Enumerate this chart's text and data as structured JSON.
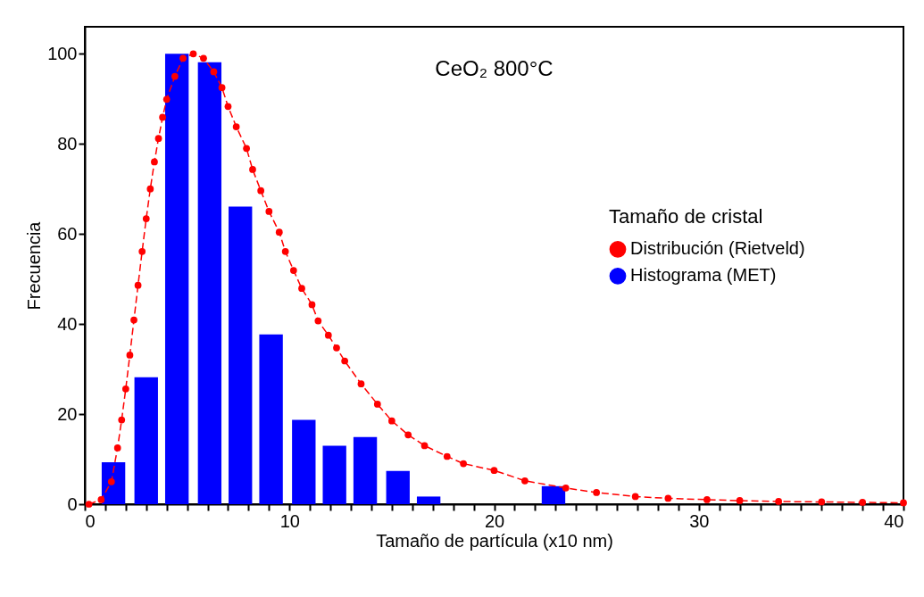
{
  "chart_data": {
    "type": "bar",
    "title": "CeO₂ 800°C",
    "xlabel": "Tamaño de partícula (x10 nm)",
    "ylabel": "Frecuencia",
    "legend_title": "Tamaño de cristal",
    "legend": "right",
    "grid": false,
    "xlim": [
      0,
      40
    ],
    "ylim": [
      0,
      106
    ],
    "xticks": [
      0,
      {
        "value": 1,
        "label": null
      },
      {
        "value": 2,
        "label": null
      },
      {
        "value": 3,
        "label": null
      },
      {
        "value": 4,
        "label": null
      },
      {
        "value": 5,
        "label": null
      },
      {
        "value": 6,
        "label": null
      },
      {
        "value": 7,
        "label": null
      },
      {
        "value": 8,
        "label": null
      },
      {
        "value": 9,
        "label": null
      },
      10,
      {
        "value": 11,
        "label": null
      },
      {
        "value": 12,
        "label": null
      },
      {
        "value": 13,
        "label": null
      },
      {
        "value": 14,
        "label": null
      },
      {
        "value": 15,
        "label": null
      },
      {
        "value": 16,
        "label": null
      },
      {
        "value": 17,
        "label": null
      },
      {
        "value": 18,
        "label": null
      },
      {
        "value": 19,
        "label": null
      },
      20,
      {
        "value": 21,
        "label": null
      },
      {
        "value": 22,
        "label": null
      },
      {
        "value": 23,
        "label": null
      },
      {
        "value": 24,
        "label": null
      },
      {
        "value": 25,
        "label": null
      },
      {
        "value": 26,
        "label": null
      },
      {
        "value": 27,
        "label": null
      },
      {
        "value": 28,
        "label": null
      },
      {
        "value": 29,
        "label": null
      },
      30,
      {
        "value": 31,
        "label": null
      },
      {
        "value": 32,
        "label": null
      },
      {
        "value": 33,
        "label": null
      },
      {
        "value": 34,
        "label": null
      },
      {
        "value": 35,
        "label": null
      },
      {
        "value": 36,
        "label": null
      },
      {
        "value": 37,
        "label": null
      },
      {
        "value": 38,
        "label": null
      },
      {
        "value": 39,
        "label": null
      },
      40
    ],
    "yticks": [
      0,
      20,
      40,
      60,
      80,
      100
    ],
    "series": [
      {
        "name": "Distribución (Rietveld)",
        "type": "line",
        "color": "#ff0000",
        "marker": "circle",
        "line_style": "dashed",
        "x": [
          0.2,
          0.8,
          1.3,
          1.6,
          1.8,
          2.0,
          2.2,
          2.4,
          2.6,
          2.8,
          3.0,
          3.2,
          3.4,
          3.6,
          3.8,
          4.0,
          4.4,
          4.8,
          5.3,
          5.8,
          6.3,
          6.7,
          7.0,
          7.4,
          7.9,
          8.2,
          8.6,
          9.0,
          9.5,
          9.8,
          10.2,
          10.6,
          11.1,
          11.4,
          11.9,
          12.3,
          12.7,
          13.5,
          14.3,
          15.0,
          15.8,
          16.6,
          17.7,
          18.5,
          20.0,
          21.5,
          23.5,
          25.0,
          26.9,
          28.5,
          30.4,
          32.0,
          33.9,
          36.0,
          38.0,
          40.0
        ],
        "values": [
          0,
          1,
          5,
          12.5,
          18.7,
          25.6,
          33.1,
          40.9,
          48.6,
          56.1,
          63.4,
          70,
          76,
          81.2,
          85.9,
          89.9,
          95,
          99,
          100,
          99,
          96,
          92.5,
          88.3,
          83.8,
          79,
          74.3,
          69.6,
          65,
          60.4,
          56.1,
          51.9,
          47.9,
          44.3,
          40.7,
          37.5,
          34.7,
          31.8,
          26.7,
          22.2,
          18.5,
          15.4,
          13,
          10.6,
          9,
          7.5,
          5.2,
          3.6,
          2.6,
          1.7,
          1.3,
          1,
          0.8,
          0.6,
          0.5,
          0.4,
          0.3
        ]
      },
      {
        "name": "Histograma (MET)",
        "type": "bar",
        "color": "#0000ff",
        "x": [
          1.4,
          3.0,
          4.5,
          6.1,
          7.6,
          9.1,
          10.7,
          12.2,
          13.7,
          15.3,
          16.8,
          22.9
        ],
        "values": [
          9.3,
          28.2,
          100,
          98.1,
          66.1,
          37.7,
          18.7,
          13,
          14.9,
          7.4,
          1.7,
          4
        ]
      }
    ]
  }
}
